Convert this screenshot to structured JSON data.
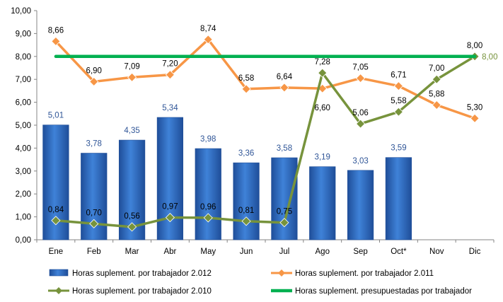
{
  "chart_data": {
    "type": "bar",
    "categories": [
      "Ene",
      "Feb",
      "Mar",
      "Abr",
      "May",
      "Jun",
      "Jul",
      "Ago",
      "Sep",
      "Oct*",
      "Nov",
      "Dic"
    ],
    "ylim": [
      0,
      10
    ],
    "yticks": [
      "0,00",
      "1,00",
      "2,00",
      "3,00",
      "4,00",
      "5,00",
      "6,00",
      "7,00",
      "8,00",
      "9,00",
      "10,00"
    ],
    "grid": false,
    "legend_position": "bottom",
    "series": [
      {
        "name": "Horas suplement. por trabajador 2.012",
        "type": "bar",
        "color": "#2E6DC3",
        "label_color": "#2F5597",
        "values": [
          5.01,
          3.78,
          4.35,
          5.34,
          3.98,
          3.36,
          3.58,
          3.19,
          3.03,
          3.59,
          null,
          null
        ],
        "labels": [
          "5,01",
          "3,78",
          "4,35",
          "5,34",
          "3,98",
          "3,36",
          "3,58",
          "3,19",
          "3,03",
          "3,59",
          "",
          ""
        ]
      },
      {
        "name": "Horas suplement. por trabajador 2.011",
        "type": "line",
        "color": "#F79646",
        "label_color": "#000000",
        "values": [
          8.66,
          6.9,
          7.09,
          7.2,
          8.74,
          6.58,
          6.64,
          6.6,
          7.05,
          6.71,
          5.88,
          5.3
        ],
        "labels": [
          "8,66",
          "6,90",
          "7,09",
          "7,20",
          "8,74",
          "6,58",
          "6,64",
          "6,60",
          "7,05",
          "6,71",
          "5,88",
          "5,30"
        ]
      },
      {
        "name": "Horas suplement. por trabajador 2.010",
        "type": "line",
        "color": "#77933C",
        "label_color": "#000000",
        "values": [
          0.84,
          0.7,
          0.56,
          0.97,
          0.96,
          0.81,
          0.75,
          7.28,
          5.06,
          5.58,
          7.0,
          8.0
        ],
        "labels": [
          "0,84",
          "0,70",
          "0,56",
          "0,97",
          "0,96",
          "0,81",
          "0,75",
          "7,28",
          "5,06",
          "5,58",
          "7,00",
          "8,00"
        ]
      },
      {
        "name": "Horas suplement. presupuestadas por trabajador",
        "type": "line",
        "color": "#00B050",
        "label_color": "#77933C",
        "values": [
          8.0,
          8.0,
          8.0,
          8.0,
          8.0,
          8.0,
          8.0,
          8.0,
          8.0,
          8.0,
          8.0,
          8.0
        ],
        "labels": [
          "",
          "",
          "",
          "",
          "",
          "",
          "",
          "",
          "",
          "",
          "",
          "8,00"
        ]
      }
    ]
  }
}
